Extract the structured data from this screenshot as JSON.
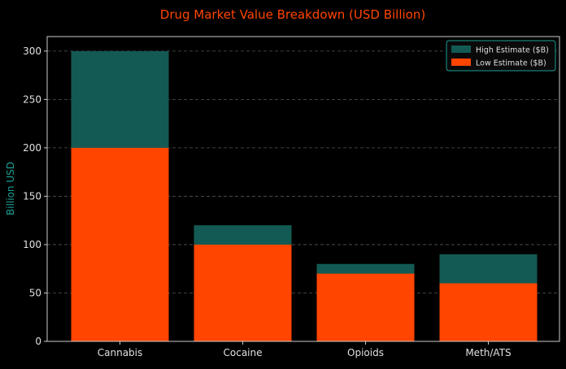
{
  "chart_data": {
    "type": "bar",
    "title": "Drug Market Value Breakdown (USD Billion)",
    "xlabel": "",
    "ylabel": "Billion USD",
    "categories": [
      "Cannabis",
      "Cocaine",
      "Opioids",
      "Meth/ATS"
    ],
    "series": [
      {
        "name": "High Estimate ($B)",
        "values": [
          300,
          120,
          80,
          90
        ],
        "color": "#135a54"
      },
      {
        "name": "Low Estimate ($B)",
        "values": [
          200,
          100,
          70,
          60
        ],
        "color": "#ff4500"
      }
    ],
    "overlay": true,
    "ylim": [
      0,
      315
    ],
    "yticks": [
      0,
      50,
      100,
      150,
      200,
      250,
      300
    ],
    "grid": "y dashed",
    "legend": "top-right",
    "colors": {
      "background": "#000000",
      "title": "#ff4500",
      "ylabel": "#1a9e93",
      "axis": "#cccccc",
      "tick_text": "#e0e0e0"
    }
  }
}
